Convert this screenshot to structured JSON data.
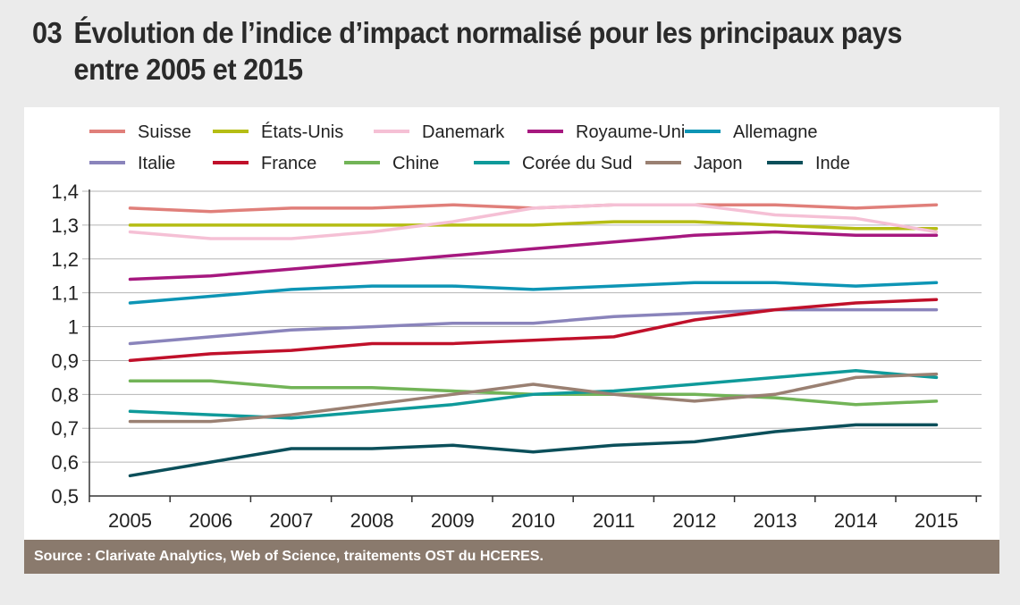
{
  "chart_data": {
    "type": "line",
    "number": "03",
    "title_line1": "Évolution de l’indice d’impact normalisé pour les principaux pays",
    "title_line2": "entre 2005 et 2015",
    "x": [
      "2005",
      "2006",
      "2007",
      "2008",
      "2009",
      "2010",
      "2011",
      "2012",
      "2013",
      "2014",
      "2015"
    ],
    "ylim": [
      0.5,
      1.4
    ],
    "yticks": [
      "0,5",
      "0,6",
      "0,7",
      "0,8",
      "0,9",
      "1",
      "1,1",
      "1,2",
      "1,3",
      "1,4"
    ],
    "grid": true,
    "legend_placement": "top",
    "series": [
      {
        "name": "Suisse",
        "color": "#e07f7a",
        "values": [
          1.35,
          1.34,
          1.35,
          1.35,
          1.36,
          1.35,
          1.36,
          1.36,
          1.36,
          1.35,
          1.36
        ]
      },
      {
        "name": "États-Unis",
        "color": "#b5bd14",
        "values": [
          1.3,
          1.3,
          1.3,
          1.3,
          1.3,
          1.3,
          1.31,
          1.31,
          1.3,
          1.29,
          1.29
        ]
      },
      {
        "name": "Danemark",
        "color": "#f5c0d5",
        "values": [
          1.28,
          1.26,
          1.26,
          1.28,
          1.31,
          1.35,
          1.36,
          1.36,
          1.33,
          1.32,
          1.28
        ]
      },
      {
        "name": "Royaume-Uni",
        "color": "#a6187f",
        "values": [
          1.14,
          1.15,
          1.17,
          1.19,
          1.21,
          1.23,
          1.25,
          1.27,
          1.28,
          1.27,
          1.27
        ]
      },
      {
        "name": "Allemagne",
        "color": "#0d95b5",
        "values": [
          1.07,
          1.09,
          1.11,
          1.12,
          1.12,
          1.11,
          1.12,
          1.13,
          1.13,
          1.12,
          1.13
        ]
      },
      {
        "name": "Italie",
        "color": "#8a84bb",
        "values": [
          0.95,
          0.97,
          0.99,
          1.0,
          1.01,
          1.01,
          1.03,
          1.04,
          1.05,
          1.05,
          1.05
        ]
      },
      {
        "name": "France",
        "color": "#c0102a",
        "values": [
          0.9,
          0.92,
          0.93,
          0.95,
          0.95,
          0.96,
          0.97,
          1.02,
          1.05,
          1.07,
          1.08
        ]
      },
      {
        "name": "Chine",
        "color": "#72b457",
        "values": [
          0.84,
          0.84,
          0.82,
          0.82,
          0.81,
          0.8,
          0.8,
          0.8,
          0.79,
          0.77,
          0.78
        ]
      },
      {
        "name": "Corée du Sud",
        "color": "#0f9a9a",
        "values": [
          0.75,
          0.74,
          0.73,
          0.75,
          0.77,
          0.8,
          0.81,
          0.83,
          0.85,
          0.87,
          0.85
        ]
      },
      {
        "name": "Japon",
        "color": "#9a8072",
        "values": [
          0.72,
          0.72,
          0.74,
          0.77,
          0.8,
          0.83,
          0.8,
          0.78,
          0.8,
          0.85,
          0.86
        ]
      },
      {
        "name": "Inde",
        "color": "#0b4f5a",
        "values": [
          0.56,
          0.6,
          0.64,
          0.64,
          0.65,
          0.63,
          0.65,
          0.66,
          0.69,
          0.71,
          0.71
        ]
      }
    ],
    "source": "Source : Clarivate Analytics, Web of Science, traitements OST du HCERES."
  }
}
